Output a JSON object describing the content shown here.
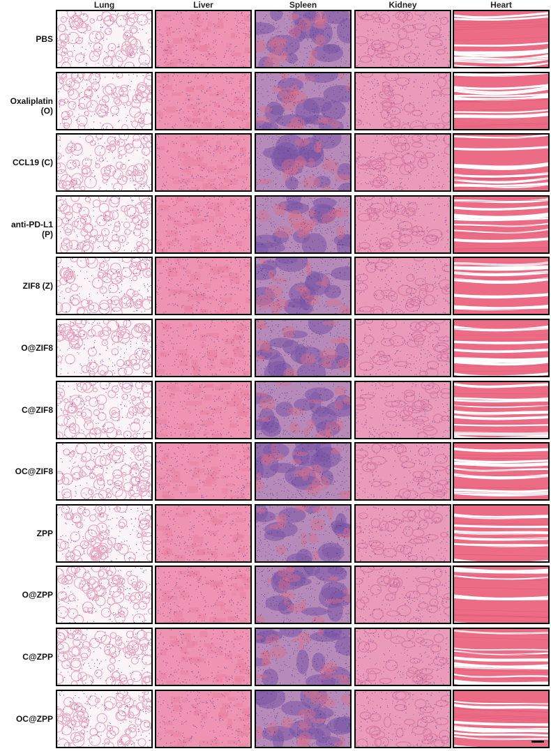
{
  "columns": [
    "Lung",
    "Liver",
    "Spleen",
    "Kidney",
    "Heart"
  ],
  "rows": [
    "PBS",
    "Oxaliplatin (O)",
    "CCL19 (C)",
    "anti-PD-L1 (P)",
    "ZIF8 (Z)",
    "O@ZIF8",
    "C@ZIF8",
    "OC@ZIF8",
    "ZPP",
    "O@ZPP",
    "C@ZPP",
    "OC@ZPP"
  ],
  "tile_icon": "histology-micrograph",
  "stain_colors": {
    "lung": {
      "bg": "#fbf5f8",
      "tissue": "#e7a9c2",
      "nuclei": "#8a4f9e"
    },
    "liver": {
      "bg": "#ee93b2",
      "tissue": "#e7809f",
      "nuclei": "#7d4a94"
    },
    "spleen": {
      "bg": "#b68bb9",
      "tissue": "#7a56a6",
      "red": "#d86f8c",
      "nuclei": "#4b2f83"
    },
    "kidney": {
      "bg": "#e99bb9",
      "tissue": "#d97ea5",
      "nuclei": "#6f4593"
    },
    "heart": {
      "bg": "#ffffff",
      "tissue": "#ec6c86",
      "dark": "#d94d6e"
    }
  }
}
